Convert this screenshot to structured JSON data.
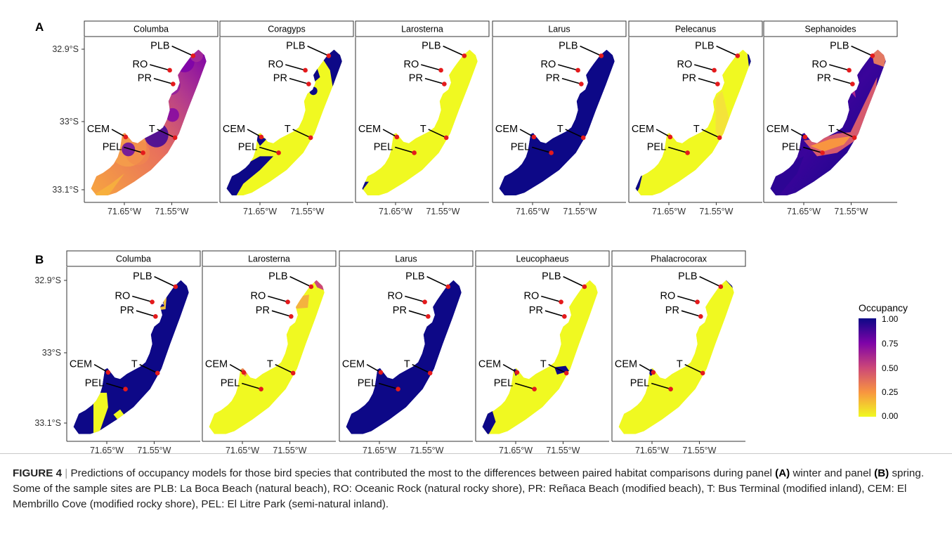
{
  "panels": [
    {
      "label": "A",
      "facets": [
        "Columba",
        "Coragyps",
        "Larosterna",
        "Larus",
        "Pelecanus",
        "Sephanoides"
      ]
    },
    {
      "label": "B",
      "facets": [
        "Columba",
        "Larosterna",
        "Larus",
        "Leucophaeus",
        "Phalacrocorax"
      ]
    }
  ],
  "sites": [
    "PLB",
    "RO",
    "PR",
    "CEM",
    "T",
    "PEL"
  ],
  "axes": {
    "y_ticks": [
      "32.9°S",
      "33°S",
      "33.1°S"
    ],
    "x_ticks": [
      "71.65°W",
      "71.55°W"
    ]
  },
  "legend": {
    "title": "Occupancy",
    "labels": [
      "1.00",
      "0.75",
      "0.50",
      "0.25",
      "0.00"
    ],
    "colors": [
      "#0d0887",
      "#7e03a8",
      "#cc4778",
      "#f89540",
      "#f0f921"
    ]
  },
  "colors": {
    "site_point": "#e41a1c",
    "low": "#f0f921",
    "high": "#0d0887"
  },
  "caption": {
    "figure_label": "FIGURE 4",
    "separator": "|",
    "text1": " Predictions of occupancy models for those bird species that contributed the most to the differences between paired habitat comparisons during panel ",
    "label_a": "(A)",
    "text2": " winter and panel ",
    "label_b": "(B)",
    "text3": " spring. Some of the sample sites are PLB: La Boca Beach (natural beach), RO: Oceanic Rock (natural rocky shore), PR: Reñaca Beach (modified beach), T: Bus Terminal (modified inland), CEM: El Membrillo Cove (modified rocky shore), PEL: El Litre Park (semi-natural inland)."
  }
}
